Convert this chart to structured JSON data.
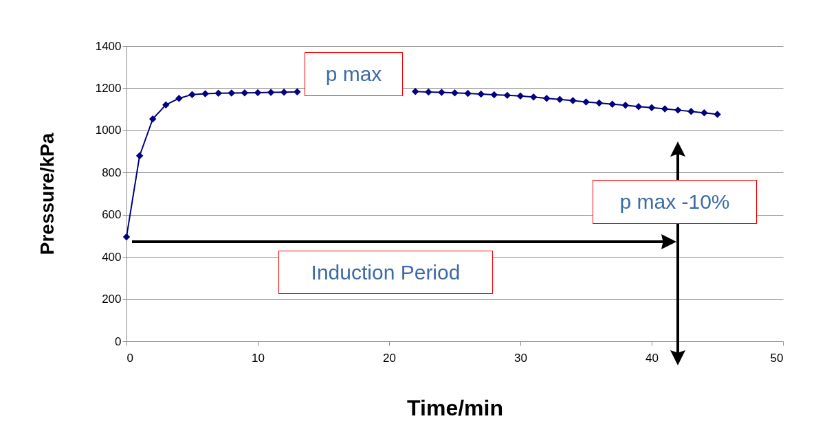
{
  "chart_data": {
    "type": "line",
    "xlabel": "Time/min",
    "ylabel": "Pressure/kPa",
    "x": [
      0,
      1,
      2,
      3,
      4,
      5,
      6,
      7,
      8,
      9,
      10,
      11,
      12,
      13,
      14,
      15,
      16,
      17,
      18,
      19,
      20,
      21,
      22,
      23,
      24,
      25,
      26,
      27,
      28,
      29,
      30,
      31,
      32,
      33,
      34,
      35,
      36,
      37,
      38,
      39,
      40,
      41,
      42,
      43,
      44,
      45
    ],
    "series": [
      {
        "color": "#000080",
        "values": [
          495,
          880,
          1054,
          1121,
          1152,
          1170,
          1174,
          1176,
          1177,
          1178,
          1179,
          1180,
          1181,
          1183,
          null,
          null,
          null,
          null,
          null,
          null,
          null,
          null,
          1184,
          1182,
          1180,
          1178,
          1175,
          1172,
          1169,
          1166,
          1163,
          1158,
          1152,
          1147,
          1141,
          1135,
          1130,
          1124,
          1119,
          1113,
          1108,
          1102,
          1096,
          1090,
          1083,
          1076
        ]
      }
    ],
    "xlim": [
      0,
      50
    ],
    "xticks": [
      0,
      10,
      20,
      30,
      40,
      50
    ],
    "ylim": [
      0,
      1400
    ],
    "yticks": [
      0,
      200,
      400,
      600,
      800,
      1000,
      1200,
      1400
    ],
    "grid": "y",
    "marker": "diamond",
    "line_style": "solid",
    "annotations": [
      "p max",
      "p max -10%",
      "Induction Period"
    ]
  }
}
